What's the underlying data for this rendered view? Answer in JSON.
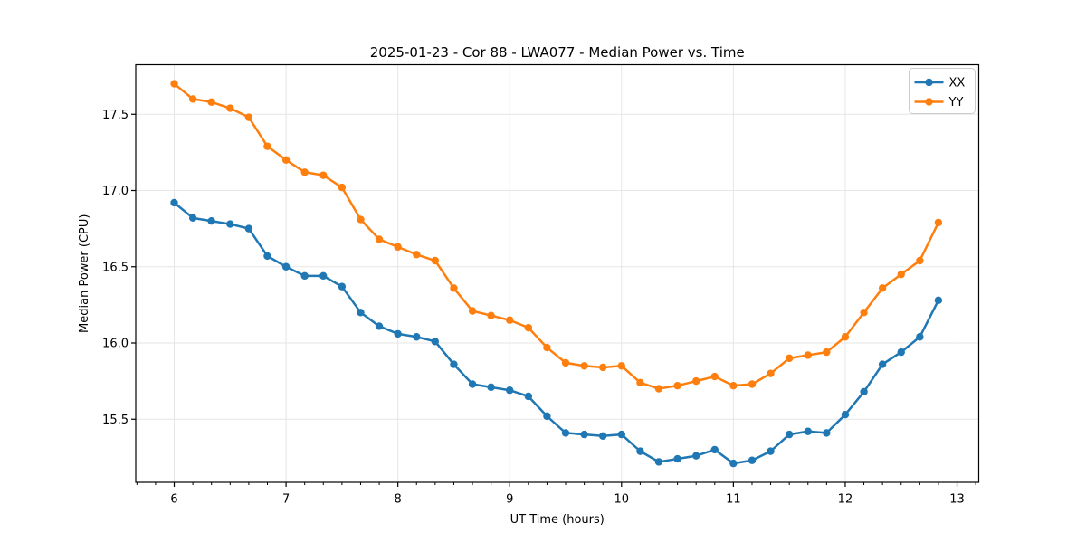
{
  "chart_data": {
    "type": "line",
    "title": "2025-01-23 - Cor 88 - LWA077 - Median Power vs. Time",
    "xlabel": "UT Time (hours)",
    "ylabel": "Median Power (CPU)",
    "xlim": [
      5.656,
      13.194
    ],
    "ylim": [
      15.086,
      17.825
    ],
    "x_major_ticks": [
      6,
      7,
      8,
      9,
      10,
      11,
      12,
      13
    ],
    "x_minor_tick_step_hours": 0.1667,
    "y_major_ticks": [
      15.5,
      16.0,
      16.5,
      17.0,
      17.5
    ],
    "y_tick_labels": [
      "15.5",
      "16.0",
      "16.5",
      "17.0",
      "17.5"
    ],
    "grid": true,
    "legend_position": "upper right",
    "x": [
      6.0,
      6.167,
      6.333,
      6.5,
      6.667,
      6.833,
      7.0,
      7.167,
      7.333,
      7.5,
      7.667,
      7.833,
      8.0,
      8.167,
      8.333,
      8.5,
      8.667,
      8.833,
      9.0,
      9.167,
      9.333,
      9.5,
      9.667,
      9.833,
      10.0,
      10.167,
      10.333,
      10.5,
      10.667,
      10.833,
      11.0,
      11.167,
      11.333,
      11.5,
      11.667,
      11.833,
      12.0,
      12.167,
      12.333,
      12.5,
      12.667,
      12.833
    ],
    "series": [
      {
        "name": "XX",
        "color": "#1f77b4",
        "marker": "circle",
        "values": [
          16.92,
          16.82,
          16.8,
          16.78,
          16.75,
          16.57,
          16.5,
          16.44,
          16.44,
          16.37,
          16.2,
          16.11,
          16.06,
          16.04,
          16.01,
          15.86,
          15.73,
          15.71,
          15.69,
          15.65,
          15.52,
          15.41,
          15.4,
          15.39,
          15.4,
          15.29,
          15.22,
          15.24,
          15.26,
          15.3,
          15.21,
          15.23,
          15.29,
          15.4,
          15.42,
          15.41,
          15.53,
          15.68,
          15.86,
          15.94,
          16.04,
          16.28
        ]
      },
      {
        "name": "YY",
        "color": "#ff7f0e",
        "marker": "circle",
        "values": [
          17.7,
          17.6,
          17.58,
          17.54,
          17.48,
          17.29,
          17.2,
          17.12,
          17.1,
          17.02,
          16.81,
          16.68,
          16.63,
          16.58,
          16.54,
          16.36,
          16.21,
          16.18,
          16.15,
          16.1,
          15.97,
          15.87,
          15.85,
          15.84,
          15.85,
          15.74,
          15.7,
          15.72,
          15.75,
          15.78,
          15.72,
          15.73,
          15.8,
          15.9,
          15.92,
          15.94,
          16.04,
          16.2,
          16.36,
          16.45,
          16.54,
          16.79
        ]
      }
    ]
  },
  "style": {
    "background": "#ffffff",
    "grid_color": "#e6e6e6",
    "spine_color": "#000000",
    "tick_color": "#000000",
    "text_color": "#000000",
    "legend_border_color": "#cccccc",
    "legend_fill": "#ffffff"
  }
}
